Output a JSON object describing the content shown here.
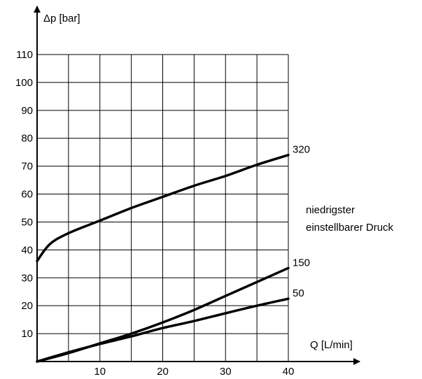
{
  "chart_data": {
    "type": "line",
    "xlabel": "Q [L/min]",
    "ylabel": "Δp [bar]",
    "xlim": [
      0,
      40
    ],
    "ylim": [
      0,
      110
    ],
    "x_ticks": [
      10,
      20,
      30,
      40
    ],
    "y_ticks": [
      10,
      20,
      30,
      40,
      50,
      60,
      70,
      80,
      90,
      100,
      110
    ],
    "grid": true,
    "annotation": [
      "niedrigster",
      "einstellbarer Druck"
    ],
    "series": [
      {
        "name": "320",
        "x": [
          0,
          2,
          5,
          10,
          15,
          20,
          25,
          30,
          35,
          40
        ],
        "y": [
          36,
          42,
          46,
          50.5,
          55,
          59,
          63,
          66.5,
          70.5,
          74
        ]
      },
      {
        "name": "150",
        "x": [
          0,
          5,
          10,
          15,
          20,
          25,
          30,
          35,
          40
        ],
        "y": [
          0,
          3,
          6.5,
          10,
          14,
          18.5,
          23.5,
          28.5,
          33.5
        ]
      },
      {
        "name": "50",
        "x": [
          0,
          5,
          10,
          15,
          20,
          25,
          30,
          35,
          40
        ],
        "y": [
          0,
          3.3,
          6.3,
          9,
          12,
          14.5,
          17.3,
          20,
          22.5
        ]
      }
    ]
  }
}
